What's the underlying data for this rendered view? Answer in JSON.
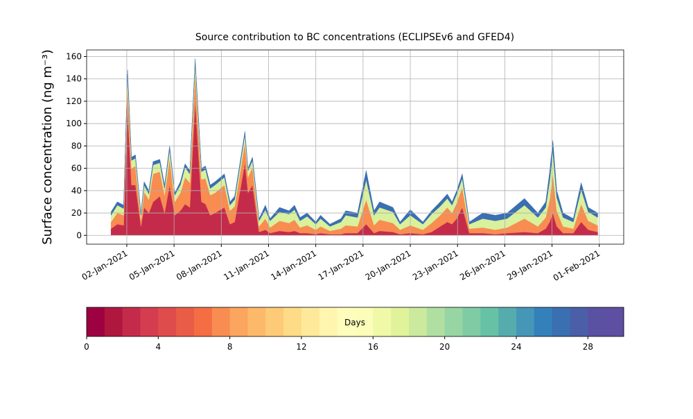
{
  "chart_data": {
    "type": "stacked_area",
    "title": "Source contribution to BC concentrations (ECLIPSEv6 and GFED4)",
    "y_label": "Surface concentration (ng m⁻³)",
    "grid": true,
    "xlim": [
      -0.55,
      33.55
    ],
    "ylim": [
      -7.9,
      165.9
    ],
    "xticks": [
      {
        "value": 2,
        "label": "02-Jan-2021"
      },
      {
        "value": 5,
        "label": "05-Jan-2021"
      },
      {
        "value": 8,
        "label": "08-Jan-2021"
      },
      {
        "value": 11,
        "label": "11-Jan-2021"
      },
      {
        "value": 14,
        "label": "14-Jan-2021"
      },
      {
        "value": 17,
        "label": "17-Jan-2021"
      },
      {
        "value": 20,
        "label": "20-Jan-2021"
      },
      {
        "value": 23,
        "label": "23-Jan-2021"
      },
      {
        "value": 26,
        "label": "26-Jan-2021"
      },
      {
        "value": 29,
        "label": "29-Jan-2021"
      },
      {
        "value": 32,
        "label": "01-Feb-2021"
      }
    ],
    "yticks": [
      0,
      20,
      40,
      60,
      80,
      100,
      120,
      140,
      160
    ],
    "x": [
      1.0,
      1.4,
      1.8,
      2.05,
      2.3,
      2.55,
      2.9,
      3.1,
      3.4,
      3.67,
      4.1,
      4.4,
      4.72,
      5.05,
      5.4,
      5.7,
      6.0,
      6.34,
      6.74,
      7.0,
      7.3,
      7.6,
      8.2,
      8.55,
      8.85,
      9.5,
      9.7,
      9.98,
      10.4,
      10.8,
      11.1,
      11.7,
      12.3,
      12.65,
      13.0,
      13.45,
      14.0,
      14.3,
      14.9,
      15.6,
      15.9,
      16.65,
      17.2,
      17.7,
      18.05,
      18.9,
      19.35,
      20.0,
      20.8,
      21.35,
      21.9,
      22.35,
      22.65,
      22.95,
      23.3,
      23.75,
      24.6,
      25.4,
      26.15,
      27.25,
      28.1,
      28.6,
      28.85,
      29.05,
      29.3,
      29.7,
      30.35,
      30.85,
      31.3,
      31.9
    ],
    "series": [
      {
        "color": "#c42b4a",
        "values": [
          6,
          10,
          9,
          110,
          45,
          45,
          8,
          25,
          20,
          30,
          35,
          20,
          45,
          18,
          22,
          28,
          25,
          120,
          30,
          28,
          18,
          20,
          25,
          10,
          12,
          65,
          38,
          45,
          3,
          5,
          2,
          4,
          3,
          4,
          2,
          2,
          1,
          2,
          1,
          1,
          2,
          2,
          10,
          2,
          4,
          3,
          1,
          2,
          1,
          3,
          8,
          12,
          10,
          15,
          25,
          2,
          2,
          1,
          2,
          3,
          2,
          6,
          12,
          20,
          8,
          2,
          2,
          12,
          5,
          3
        ]
      },
      {
        "color": "#f88c51",
        "values": [
          6,
          10,
          9,
          25,
          15,
          17,
          6,
          14,
          12,
          25,
          22,
          16,
          24,
          12,
          16,
          24,
          22,
          25,
          20,
          23,
          18,
          18,
          20,
          12,
          14,
          18,
          14,
          16,
          5,
          10,
          5,
          9,
          8,
          10,
          5,
          7,
          4,
          6,
          3,
          5,
          7,
          6,
          22,
          7,
          10,
          8,
          4,
          7,
          4,
          8,
          10,
          13,
          10,
          14,
          18,
          4,
          5,
          4,
          5,
          12,
          6,
          10,
          20,
          35,
          14,
          6,
          4,
          16,
          8,
          6
        ]
      },
      {
        "color": "#d9f09c",
        "values": [
          6,
          7,
          6,
          9,
          7,
          7,
          4,
          6,
          5,
          8,
          8,
          6,
          8,
          6,
          7,
          9,
          8,
          9,
          7,
          8,
          6,
          7,
          7,
          5,
          6,
          7,
          6,
          6,
          5,
          8,
          6,
          8,
          8,
          9,
          6,
          8,
          5,
          7,
          4,
          6,
          9,
          8,
          18,
          9,
          11,
          10,
          5,
          9,
          5,
          8,
          8,
          8,
          7,
          8,
          8,
          4,
          8,
          8,
          8,
          12,
          8,
          9,
          17,
          20,
          12,
          8,
          6,
          13,
          8,
          7
        ]
      },
      {
        "color": "#3a6fb2",
        "values": [
          3,
          3,
          3,
          4,
          3,
          3,
          2,
          3,
          3,
          3,
          3,
          3,
          3,
          2,
          3,
          3,
          3,
          4,
          3,
          3,
          3,
          3,
          3,
          3,
          3,
          3,
          2,
          3,
          2,
          4,
          2,
          4,
          3,
          4,
          3,
          3,
          2,
          3,
          2,
          3,
          4,
          4,
          8,
          4,
          5,
          4,
          2,
          5,
          2,
          3,
          4,
          4,
          3,
          3,
          4,
          2,
          5,
          5,
          5,
          6,
          4,
          5,
          8,
          10,
          6,
          4,
          3,
          6,
          4,
          4
        ]
      }
    ],
    "colorbar": {
      "label": "Days",
      "lim": [
        0,
        30
      ],
      "ticks": [
        0,
        4,
        8,
        12,
        16,
        20,
        24,
        28
      ],
      "colors": [
        "#9e0142",
        "#b0173f",
        "#c42b4a",
        "#d43d4f",
        "#de4c4b",
        "#e95d47",
        "#f46d43",
        "#f88c51",
        "#fba55f",
        "#fdb96a",
        "#fdcb78",
        "#fedb86",
        "#fee99b",
        "#fff5ae",
        "#fffdbc",
        "#fbfdb9",
        "#f0f9a7",
        "#e0f39b",
        "#cbea9e",
        "#b0dfa2",
        "#98d5a4",
        "#7fcba4",
        "#66c2a5",
        "#55acad",
        "#4596b7",
        "#3480bb",
        "#3a6fb2",
        "#4b5fa8",
        "#5a51a2",
        "#5e4fa2"
      ]
    }
  }
}
